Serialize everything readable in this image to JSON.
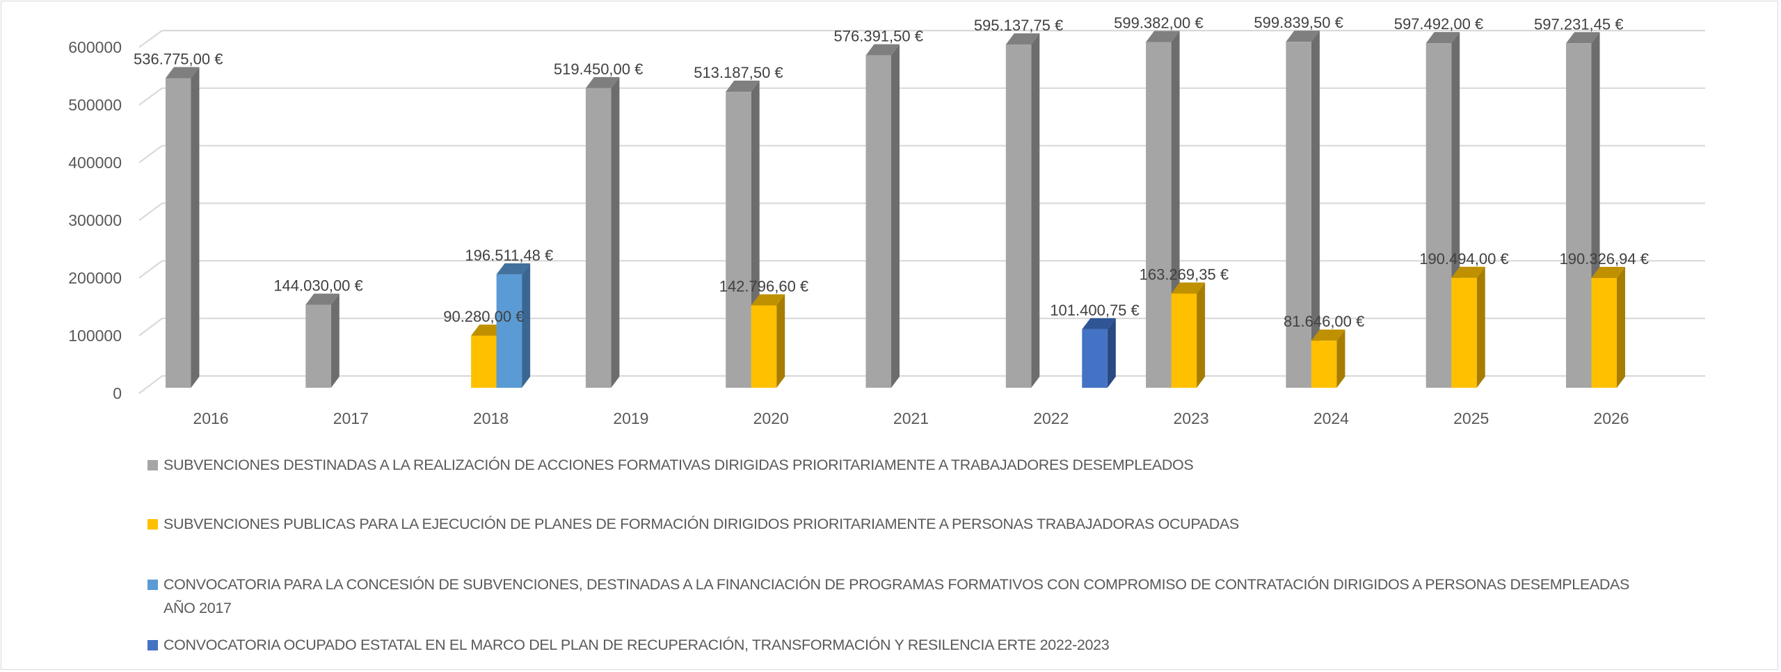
{
  "chart_data": {
    "type": "bar",
    "style": "3d-clustered-column",
    "title": "",
    "xlabel": "",
    "ylabel": "",
    "ylim": [
      0,
      600000
    ],
    "yticks": [
      "0",
      "100000",
      "200000",
      "300000",
      "400000",
      "500000",
      "600000"
    ],
    "ytick_values": [
      0,
      100000,
      200000,
      300000,
      400000,
      500000,
      600000
    ],
    "grid": true,
    "legend_position": "bottom",
    "categories": [
      "2016",
      "2017",
      "2018",
      "2019",
      "2020",
      "2021",
      "2022",
      "2023",
      "2024",
      "2025",
      "2026"
    ],
    "series": [
      {
        "name": "SUBVENCIONES DESTINADAS A LA REALIZACIÓN DE ACCIONES FORMATIVAS DIRIGIDAS PRIORITARIAMENTE A TRABAJADORES DESEMPLEADOS",
        "color": "#a5a5a5",
        "side_color": "#6d6d6d",
        "top_color": "#7f7f7f",
        "values": [
          536775.0,
          144030.0,
          null,
          519450.0,
          513187.5,
          576391.5,
          595137.75,
          599382.0,
          599839.5,
          597492.0,
          597231.45
        ],
        "labels": [
          "536.775,00 €",
          "144.030,00 €",
          null,
          "519.450,00 €",
          "513.187,50 €",
          "576.391,50 €",
          "595.137,75 €",
          "599.382,00 €",
          "599.839,50 €",
          "597.492,00 €",
          "597.231,45 €"
        ]
      },
      {
        "name": "SUBVENCIONES PUBLICAS PARA LA EJECUCIÓN DE PLANES DE FORMACIÓN DIRIGIDOS PRIORITARIAMENTE A PERSONAS TRABAJADORAS OCUPADAS",
        "color": "#ffc000",
        "side_color": "#a67d00",
        "top_color": "#bf9000",
        "values": [
          null,
          null,
          90280.0,
          null,
          142796.6,
          null,
          null,
          163269.35,
          81646.0,
          190494.0,
          190326.94
        ],
        "labels": [
          null,
          null,
          "90.280,00 €",
          null,
          "142.796,60 €",
          null,
          null,
          "163.269,35 €",
          "81.646,00 €",
          "190.494,00 €",
          "190.326,94 €"
        ]
      },
      {
        "name": "CONVOCATORIA PARA LA CONCESIÓN DE SUBVENCIONES, DESTINADAS A LA FINANCIACIÓN DE PROGRAMAS FORMATIVOS CON COMPROMISO DE CONTRATACIÓN DIRIGIDOS A PERSONAS DESEMPLEADAS AÑO 2017",
        "color": "#5b9bd5",
        "side_color": "#3a6792",
        "top_color": "#41719c",
        "values": [
          null,
          null,
          196511.48,
          null,
          null,
          null,
          null,
          null,
          null,
          null,
          null
        ],
        "labels": [
          null,
          null,
          "196.511,48 €",
          null,
          null,
          null,
          null,
          null,
          null,
          null,
          null
        ]
      },
      {
        "name": "CONVOCATORIA OCUPADO ESTATAL EN EL MARCO DEL PLAN DE RECUPERACIÓN, TRANSFORMACIÓN Y RESILENCIA ERTE 2022-2023",
        "color": "#4472c4",
        "side_color": "#2b4a82",
        "top_color": "#2f5597",
        "values": [
          null,
          null,
          null,
          null,
          null,
          null,
          101400.75,
          null,
          null,
          null,
          null
        ],
        "labels": [
          null,
          null,
          null,
          null,
          null,
          null,
          "101.400,75 €",
          null,
          null,
          null,
          null
        ]
      }
    ]
  },
  "colors": {
    "text": "#595959",
    "gridline": "#d9d9d9",
    "border": "#d9d9d9"
  }
}
